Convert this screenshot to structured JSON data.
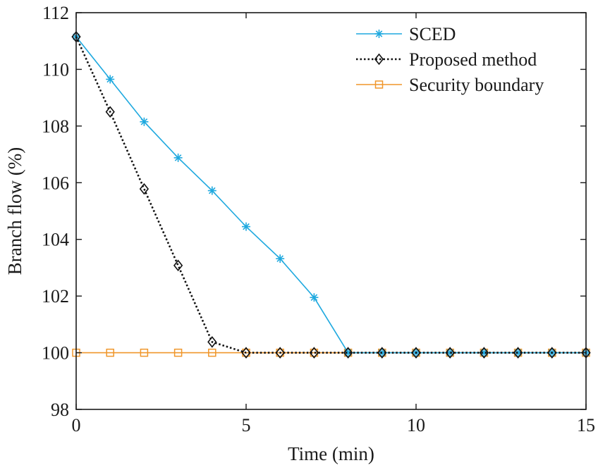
{
  "chart_data": {
    "type": "line",
    "xlabel": "Time (min)",
    "ylabel": "Branch flow (%)",
    "xlim": [
      0,
      15
    ],
    "ylim": [
      98,
      112
    ],
    "xticks": [
      0,
      5,
      10,
      15
    ],
    "yticks": [
      98,
      100,
      102,
      104,
      106,
      108,
      110,
      112
    ],
    "grid": false,
    "legend_position": "top-right",
    "x": [
      0,
      1,
      2,
      3,
      4,
      5,
      6,
      7,
      8,
      9,
      10,
      11,
      12,
      13,
      14,
      15
    ],
    "series": [
      {
        "name": "SCED",
        "color": "#1fa9df",
        "line_style": "solid",
        "marker": "asterisk",
        "values": [
          111.15,
          109.65,
          108.15,
          106.88,
          105.72,
          104.45,
          103.32,
          101.95,
          100,
          100,
          100,
          100,
          100,
          100,
          100,
          100
        ]
      },
      {
        "name": "Proposed method",
        "color": "#111111",
        "line_style": "dotted",
        "marker": "diamond",
        "values": [
          111.15,
          108.5,
          105.78,
          103.08,
          100.38,
          100,
          100,
          100,
          100,
          100,
          100,
          100,
          100,
          100,
          100,
          100
        ]
      },
      {
        "name": "Security boundary",
        "color": "#f0962a",
        "line_style": "solid",
        "marker": "square",
        "values": [
          100,
          100,
          100,
          100,
          100,
          100,
          100,
          100,
          100,
          100,
          100,
          100,
          100,
          100,
          100,
          100
        ]
      }
    ]
  }
}
